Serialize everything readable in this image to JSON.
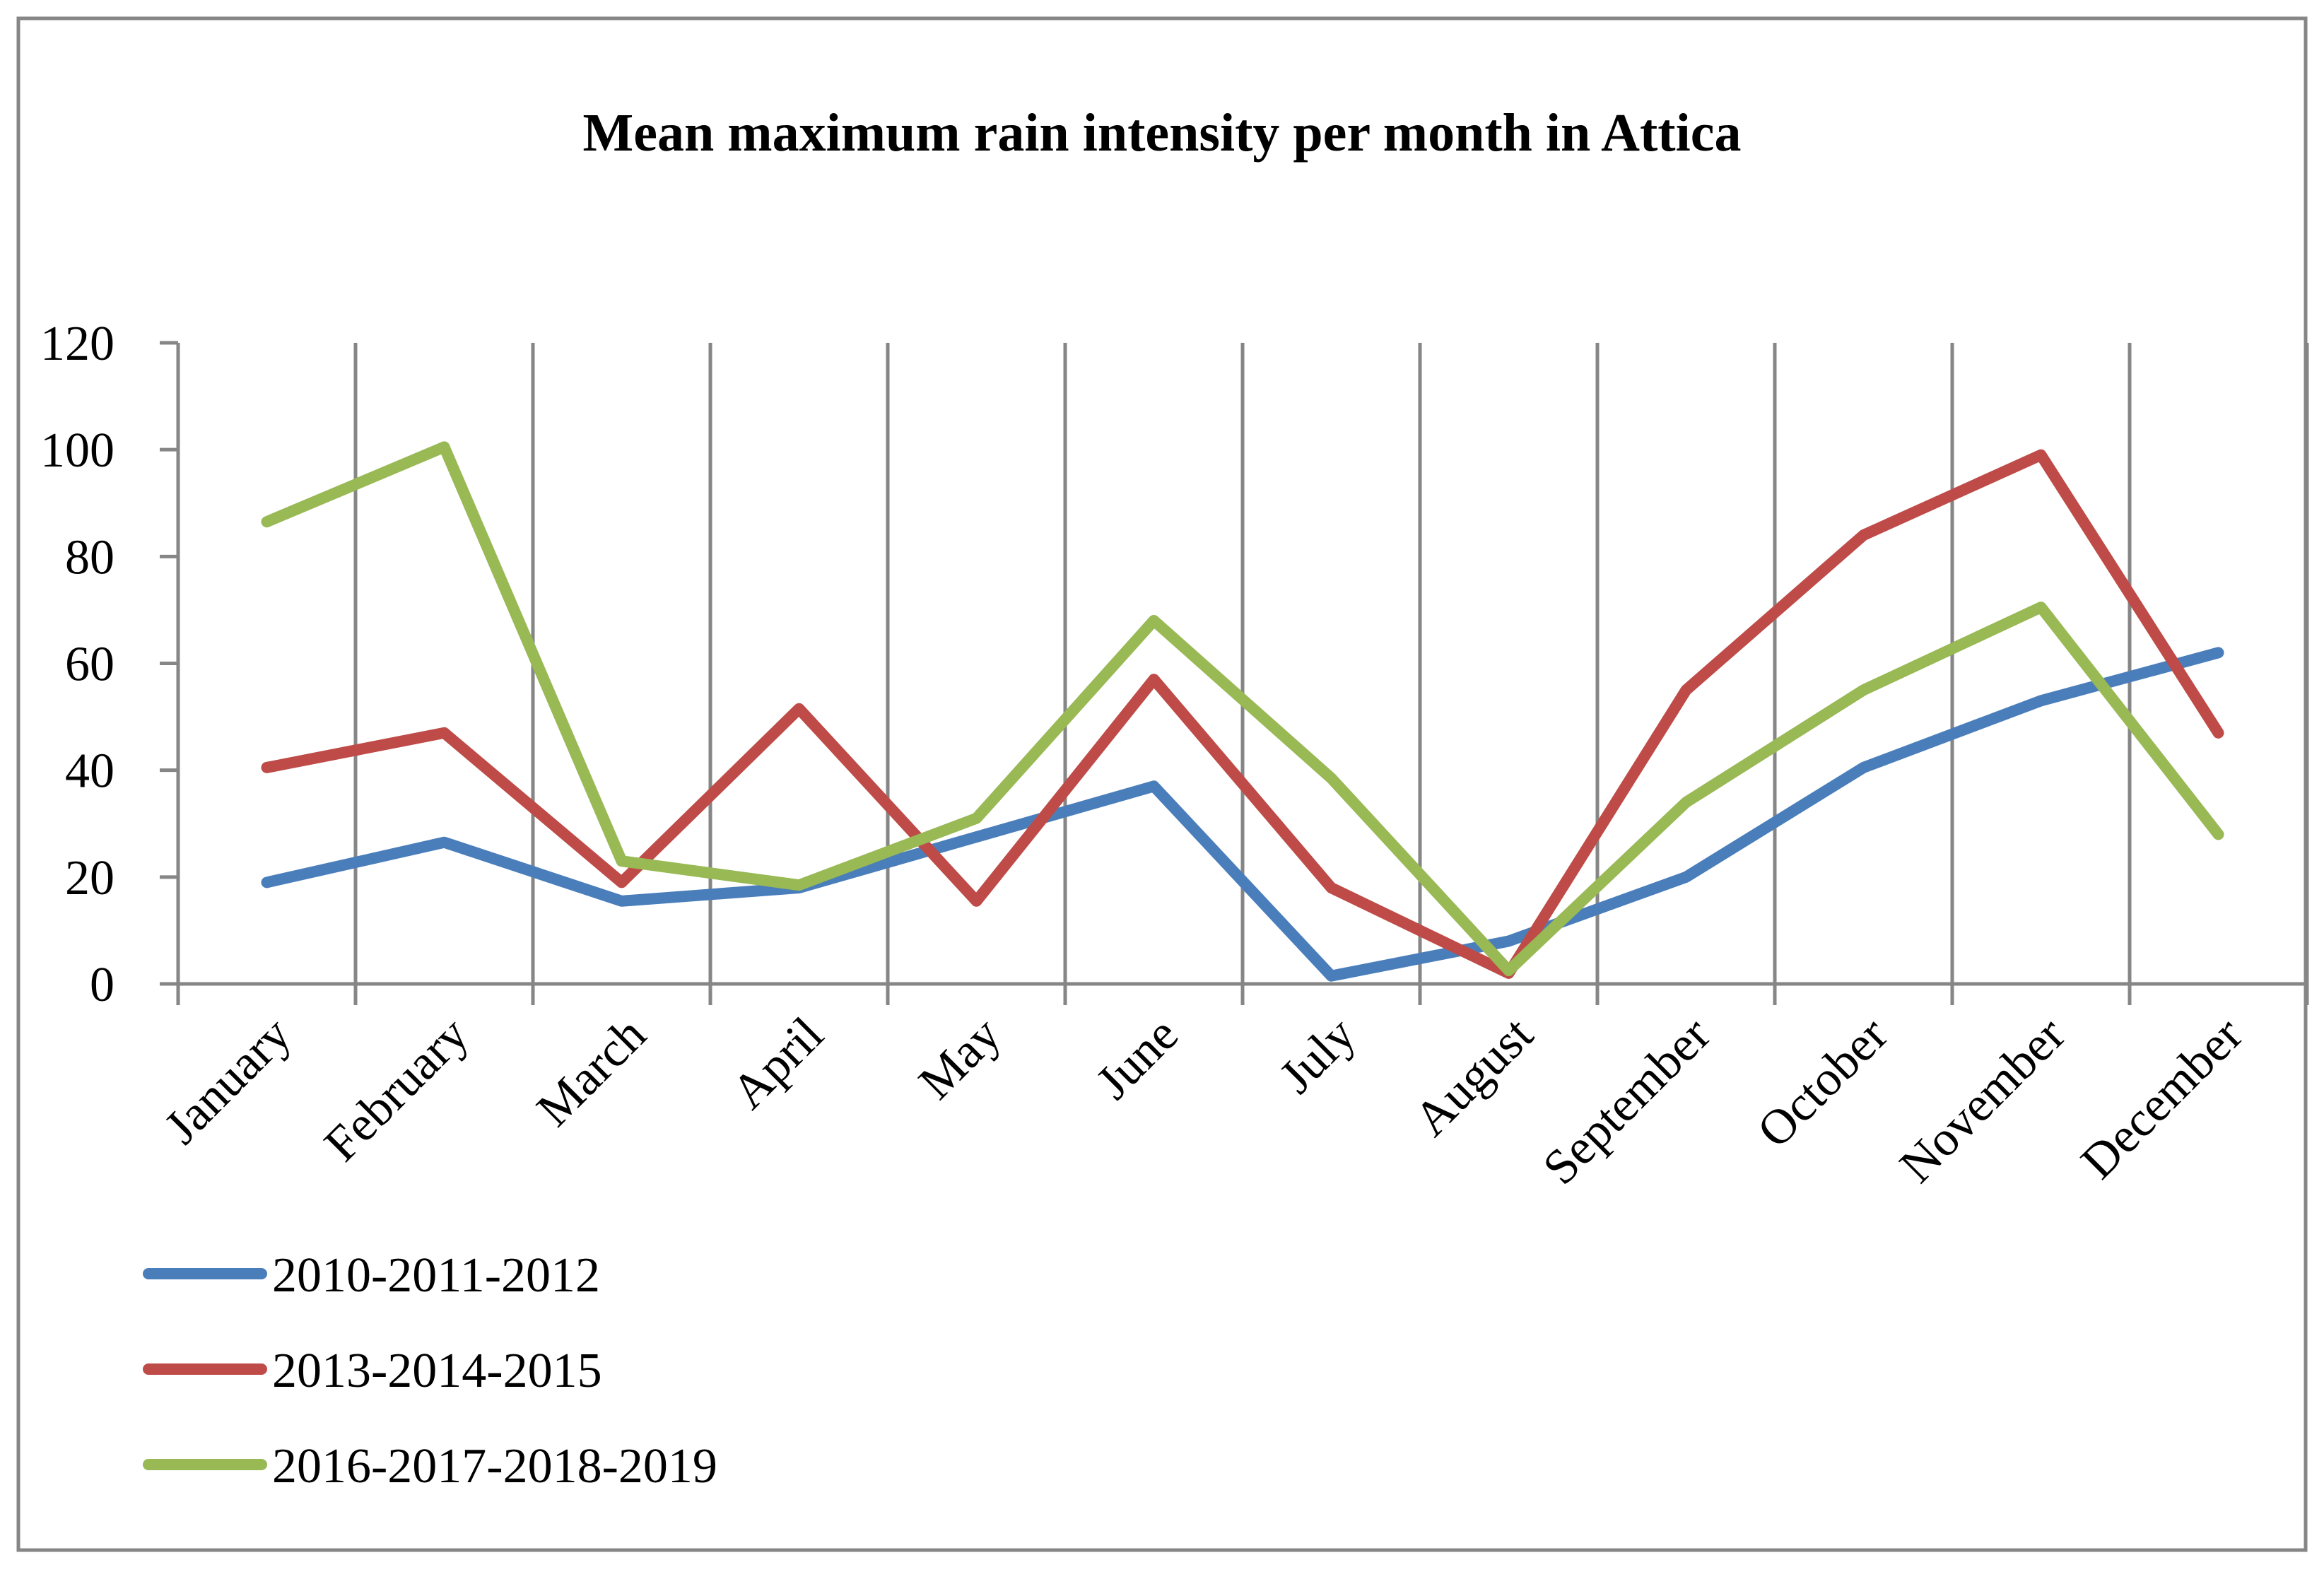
{
  "chart_data": {
    "type": "line",
    "title": "Mean maximum rain intensity per month in Attica",
    "xlabel": "",
    "ylabel": "",
    "ylim": [
      0,
      120
    ],
    "yticks": [
      0,
      20,
      40,
      60,
      80,
      100,
      120
    ],
    "ytick_labels": [
      "0",
      "20",
      "40",
      "60",
      "80",
      "100",
      "120"
    ],
    "grid": "vertical",
    "legend_position": "bottom-left",
    "categories": [
      "January",
      "February",
      "March",
      "April",
      "May",
      "June",
      "July",
      "August",
      "September",
      "October",
      "November",
      "December"
    ],
    "series": [
      {
        "name": "2010-2011-2012",
        "color": "#4a7ebb",
        "values": [
          19,
          26.5,
          15.5,
          18,
          27.5,
          37,
          1.5,
          8,
          20,
          40.5,
          53,
          62
        ]
      },
      {
        "name": "2013-2014-2015",
        "color": "#be4b48",
        "values": [
          40.5,
          47,
          19,
          51.5,
          15.5,
          57,
          18,
          2,
          55,
          84,
          99,
          47
        ]
      },
      {
        "name": "2016-2017-2018-2019",
        "color": "#98b954",
        "values": [
          86.5,
          100.5,
          23,
          18.5,
          31,
          68,
          38.5,
          2.5,
          34,
          55,
          70.5,
          28
        ]
      }
    ]
  }
}
